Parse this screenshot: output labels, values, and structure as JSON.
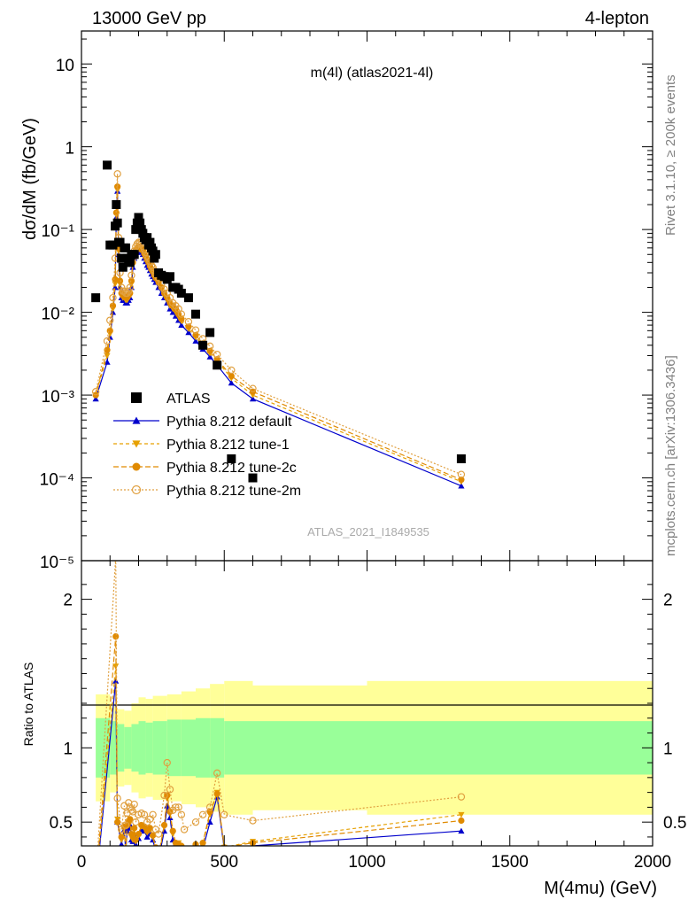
{
  "header": {
    "left": "13000 GeV pp",
    "right": "4-lepton"
  },
  "side_labels": {
    "rivet": "Rivet 3.1.10, ≥ 200k events",
    "mcplots": "mcplots.cern.ch [arXiv:1306.3436]"
  },
  "chart_data": {
    "type": "scatter",
    "title": "m(4l) (atlas2021-4l)",
    "watermark": "ATLAS_2021_I1849535",
    "xlabel": "M(4mu) (GeV)",
    "ylabel": "dσ/dM (fb/GeV)",
    "ratio_ylabel": "Ratio to ATLAS",
    "xlim": [
      0,
      2000
    ],
    "ylim": [
      1e-05,
      25
    ],
    "yscale": "log",
    "ratio_ylim": [
      0.34,
      2.26
    ],
    "xticks": [
      "0",
      "500",
      "1000",
      "1500",
      "2000"
    ],
    "yticks": [
      "10",
      "1",
      "10⁻¹",
      "10⁻²",
      "10⁻³",
      "10⁻⁴",
      "10⁻⁵"
    ],
    "ratio_yticks": [
      "2",
      "1",
      "0.5"
    ],
    "legend_position": "lower-left",
    "x": [
      50,
      90,
      100,
      110,
      118,
      122,
      126,
      130,
      135,
      140,
      145,
      150,
      155,
      160,
      165,
      170,
      175,
      180,
      185,
      190,
      195,
      200,
      205,
      210,
      215,
      220,
      225,
      230,
      235,
      240,
      245,
      250,
      255,
      260,
      270,
      280,
      290,
      300,
      310,
      320,
      330,
      340,
      350,
      375,
      400,
      425,
      450,
      475,
      525,
      600,
      1330
    ],
    "series": [
      {
        "name": "ATLAS",
        "values": [
          0.015,
          0.6,
          0.065,
          0.065,
          0.11,
          0.2,
          0.12,
          0.07,
          0.07,
          0.045,
          0.035,
          0.06,
          0.06,
          0.045,
          0.04,
          0.04,
          0.05,
          0.05,
          0.05,
          0.1,
          0.12,
          0.14,
          0.12,
          0.1,
          0.09,
          0.08,
          0.075,
          0.08,
          0.065,
          0.07,
          0.06,
          0.055,
          0.045,
          0.05,
          0.03,
          0.028,
          0.027,
          0.025,
          0.027,
          0.02,
          0.02,
          0.019,
          0.017,
          0.015,
          0.0095,
          0.004,
          0.0057,
          0.0023,
          0.00017,
          0.0001,
          0.00017
        ]
      },
      {
        "name": "Pythia 8.212 default",
        "values": [
          0.0009,
          0.0025,
          0.005,
          0.01,
          0.02,
          0.14,
          0.29,
          0.05,
          0.02,
          0.015,
          0.014,
          0.014,
          0.013,
          0.013,
          0.014,
          0.015,
          0.02,
          0.035,
          0.045,
          0.05,
          0.053,
          0.055,
          0.054,
          0.053,
          0.05,
          0.045,
          0.041,
          0.037,
          0.035,
          0.032,
          0.029,
          0.027,
          0.025,
          0.023,
          0.02,
          0.017,
          0.015,
          0.013,
          0.011,
          0.01,
          0.009,
          0.008,
          0.007,
          0.0057,
          0.0045,
          0.0036,
          0.0029,
          0.0023,
          0.0014,
          0.0009,
          8e-05
        ]
      },
      {
        "name": "Pythia 8.212 tune-1",
        "values": [
          0.001,
          0.003,
          0.0055,
          0.011,
          0.022,
          0.15,
          0.3,
          0.055,
          0.022,
          0.016,
          0.015,
          0.015,
          0.014,
          0.014,
          0.015,
          0.016,
          0.022,
          0.038,
          0.048,
          0.053,
          0.056,
          0.058,
          0.057,
          0.056,
          0.053,
          0.048,
          0.044,
          0.04,
          0.037,
          0.034,
          0.031,
          0.029,
          0.027,
          0.025,
          0.022,
          0.019,
          0.016,
          0.014,
          0.012,
          0.011,
          0.01,
          0.0088,
          0.0078,
          0.0063,
          0.005,
          0.004,
          0.0032,
          0.0026,
          0.0016,
          0.001,
          9e-05
        ]
      },
      {
        "name": "Pythia 8.212 tune-2c",
        "values": [
          0.001,
          0.0035,
          0.006,
          0.012,
          0.025,
          0.16,
          0.33,
          0.06,
          0.024,
          0.017,
          0.016,
          0.016,
          0.015,
          0.015,
          0.016,
          0.017,
          0.024,
          0.04,
          0.05,
          0.055,
          0.06,
          0.062,
          0.061,
          0.06,
          0.056,
          0.051,
          0.047,
          0.043,
          0.04,
          0.036,
          0.033,
          0.031,
          0.028,
          0.026,
          0.023,
          0.02,
          0.017,
          0.015,
          0.013,
          0.012,
          0.011,
          0.0095,
          0.0083,
          0.0067,
          0.0053,
          0.0042,
          0.0034,
          0.0027,
          0.0017,
          0.0011,
          9.5e-05
        ]
      },
      {
        "name": "Pythia 8.212 tune-2m",
        "values": [
          0.0011,
          0.0045,
          0.008,
          0.015,
          0.045,
          0.2,
          0.47,
          0.08,
          0.03,
          0.02,
          0.018,
          0.018,
          0.017,
          0.017,
          0.018,
          0.02,
          0.028,
          0.045,
          0.055,
          0.062,
          0.067,
          0.07,
          0.069,
          0.067,
          0.063,
          0.058,
          0.053,
          0.048,
          0.045,
          0.041,
          0.037,
          0.035,
          0.032,
          0.029,
          0.026,
          0.022,
          0.019,
          0.017,
          0.015,
          0.013,
          0.012,
          0.011,
          0.0095,
          0.0077,
          0.0061,
          0.0048,
          0.0039,
          0.0031,
          0.002,
          0.0012,
          0.00011
        ]
      }
    ],
    "ratio": {
      "band_edges": [
        50,
        100,
        125,
        150,
        175,
        200,
        225,
        250,
        300,
        350,
        400,
        450,
        500,
        600,
        1000,
        2000
      ],
      "band_inner_half": [
        0.2,
        0.18,
        0.16,
        0.14,
        0.16,
        0.18,
        0.17,
        0.18,
        0.19,
        0.19,
        0.2,
        0.2,
        0.18,
        0.18,
        0.18
      ],
      "band_outer_half": [
        0.36,
        0.3,
        0.26,
        0.25,
        0.3,
        0.34,
        0.33,
        0.35,
        0.36,
        0.38,
        0.4,
        0.43,
        0.45,
        0.42,
        0.45
      ],
      "x": [
        50,
        120,
        126,
        140,
        150,
        155,
        160,
        165,
        170,
        175,
        180,
        185,
        190,
        200,
        210,
        220,
        230,
        240,
        250,
        260,
        270,
        290,
        300,
        310,
        320,
        330,
        340,
        350,
        360,
        400,
        425,
        450,
        475,
        500,
        600,
        1330
      ],
      "series": [
        {
          "name": "Pythia 8.212 default",
          "values": [
            0.06,
            1.45,
            0.5,
            0.35,
            0.45,
            0.3,
            0.44,
            0.46,
            0.48,
            0.38,
            0.37,
            0.42,
            0.35,
            0.39,
            0.45,
            0.44,
            0.4,
            0.42,
            0.38,
            0.3,
            0.25,
            0.44,
            0.61,
            0.53,
            0.38,
            0.27,
            0.35,
            0.3,
            0.2,
            0.3,
            0.32,
            0.5,
            0.67,
            0.32,
            0.34,
            0.44
          ]
        },
        {
          "name": "Pythia 8.212 tune-1",
          "values": [
            0.08,
            1.55,
            0.52,
            0.38,
            0.46,
            0.3,
            0.47,
            0.48,
            0.5,
            0.4,
            0.38,
            0.45,
            0.37,
            0.41,
            0.47,
            0.46,
            0.43,
            0.45,
            0.4,
            0.32,
            0.27,
            0.47,
            0.66,
            0.56,
            0.42,
            0.35,
            0.36,
            0.33,
            0.22,
            0.33,
            0.35,
            0.55,
            0.7,
            0.33,
            0.37,
            0.55
          ]
        },
        {
          "name": "Pythia 8.212 tune-2c",
          "values": [
            0.08,
            1.75,
            0.5,
            0.4,
            0.47,
            0.3,
            0.48,
            0.5,
            0.52,
            0.42,
            0.4,
            0.46,
            0.38,
            0.42,
            0.48,
            0.47,
            0.44,
            0.46,
            0.41,
            0.33,
            0.28,
            0.48,
            0.68,
            0.57,
            0.44,
            0.36,
            0.35,
            0.34,
            0.23,
            0.35,
            0.36,
            0.57,
            0.69,
            0.33,
            0.36,
            0.51
          ]
        },
        {
          "name": "Pythia 8.212 tune-2m",
          "values": [
            0.1,
            2.28,
            0.66,
            0.45,
            0.61,
            0.48,
            0.56,
            0.63,
            0.6,
            0.58,
            0.57,
            0.62,
            0.5,
            0.55,
            0.56,
            0.55,
            0.5,
            0.52,
            0.55,
            0.45,
            0.42,
            0.68,
            0.9,
            0.72,
            0.58,
            0.6,
            0.6,
            0.55,
            0.45,
            0.5,
            0.55,
            0.6,
            0.83,
            0.55,
            0.51,
            0.67
          ]
        }
      ]
    }
  }
}
